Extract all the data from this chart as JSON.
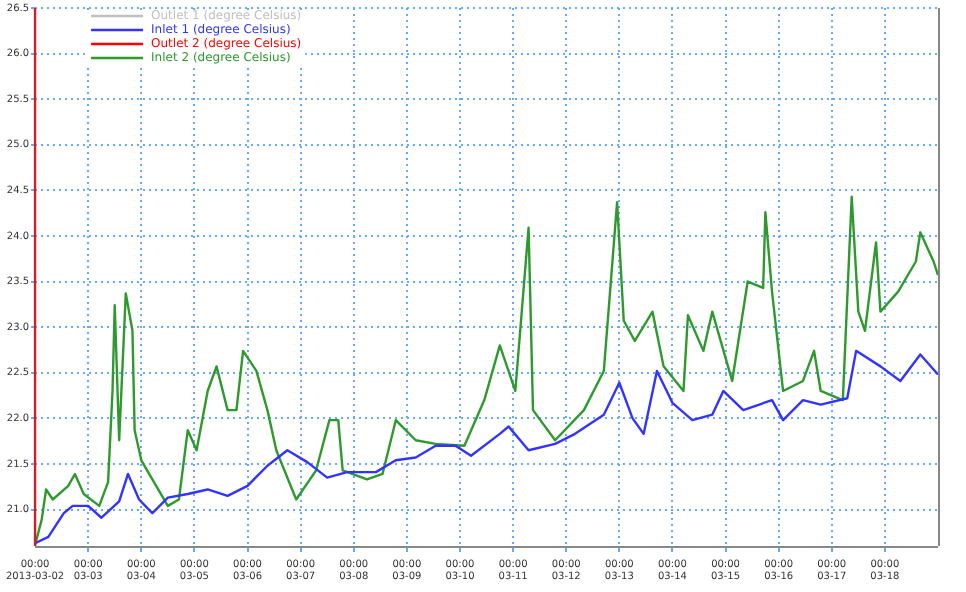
{
  "chart_data": {
    "type": "line",
    "legend": "top left",
    "grid": true,
    "marker": "none",
    "line_style": "solid",
    "xlim": [
      "2013-03-02",
      "2013-03-19"
    ],
    "xticks": [
      {
        "value": "2013-03-02",
        "label": "00:00\n2013-03-02"
      },
      {
        "value": "2013-03-03",
        "label": "00:00\n03-03"
      },
      {
        "value": "2013-03-04",
        "label": "00:00\n03-04"
      },
      {
        "value": "2013-03-05",
        "label": "00:00\n03-05"
      },
      {
        "value": "2013-03-06",
        "label": "00:00\n03-06"
      },
      {
        "value": "2013-03-07",
        "label": "00:00\n03-07"
      },
      {
        "value": "2013-03-08",
        "label": "00:00\n03-08"
      },
      {
        "value": "2013-03-09",
        "label": "00:00\n03-09"
      },
      {
        "value": "2013-03-10",
        "label": "00:00\n03-10"
      },
      {
        "value": "2013-03-11",
        "label": "00:00\n03-11"
      },
      {
        "value": "2013-03-12",
        "label": "00:00\n03-12"
      },
      {
        "value": "2013-03-13",
        "label": "00:00\n03-13"
      },
      {
        "value": "2013-03-14",
        "label": "00:00\n03-14"
      },
      {
        "value": "2013-03-15",
        "label": "00:00\n03-15"
      },
      {
        "value": "2013-03-16",
        "label": "00:00\n03-16"
      },
      {
        "value": "2013-03-17",
        "label": "00:00\n03-17"
      },
      {
        "value": "2013-03-18",
        "label": "00:00\n03-18"
      }
    ],
    "ylim": [
      20.6,
      26.5
    ],
    "yticks": [
      {
        "value": 21,
        "label": "21.0"
      },
      21.5,
      {
        "value": 22,
        "label": "22.0"
      },
      22.5,
      {
        "value": 23,
        "label": "23.0"
      },
      23.5,
      {
        "value": 24,
        "label": "24.0"
      },
      24.5,
      {
        "value": 25,
        "label": "25.0"
      },
      25.5,
      {
        "value": 26,
        "label": "26.0"
      },
      26.5
    ],
    "series": [
      {
        "name": "Outlet 1 (degree Celsius)",
        "color": "#c0c0c0"
      },
      {
        "name": "Inlet 1 (degree Celsius)",
        "color": "#3333ff",
        "x": [
          "2013-03-02T00:00",
          "2013-03-02T06:00",
          "2013-03-02T13:00",
          "2013-03-02T17:00",
          "2013-03-03T00:00",
          "2013-03-03T06:00",
          "2013-03-03T14:00",
          "2013-03-03T18:00",
          "2013-03-03T23:00",
          "2013-03-04T05:00",
          "2013-03-04T12:00",
          "2013-03-04T21:00",
          "2013-03-05T06:00",
          "2013-03-05T15:00",
          "2013-03-06T00:00",
          "2013-03-06T09:00",
          "2013-03-06T18:00",
          "2013-03-07T03:00",
          "2013-03-07T12:00",
          "2013-03-07T21:00",
          "2013-03-08T10:00",
          "2013-03-08T19:00",
          "2013-03-09T04:00",
          "2013-03-09T13:00",
          "2013-03-09T22:00",
          "2013-03-10T05:00",
          "2013-03-10T18:00",
          "2013-03-10T22:00",
          "2013-03-11T07:00",
          "2013-03-11T19:00",
          "2013-03-12T04:00",
          "2013-03-12T17:00",
          "2013-03-13T00:00",
          "2013-03-13T06:00",
          "2013-03-13T11:00",
          "2013-03-13T17:00",
          "2013-03-14T00:00",
          "2013-03-14T09:00",
          "2013-03-14T18:00",
          "2013-03-14T23:00",
          "2013-03-15T08:00",
          "2013-03-15T21:00",
          "2013-03-16T02:00",
          "2013-03-16T11:00",
          "2013-03-16T19:00",
          "2013-03-17T07:00",
          "2013-03-17T11:00",
          "2013-03-17T22:00",
          "2013-03-18T07:00",
          "2013-03-18T16:00",
          "2013-03-19T00:00"
        ],
        "values": [
          20.63,
          20.7,
          20.96,
          21.04,
          21.04,
          20.91,
          21.09,
          21.39,
          21.11,
          20.96,
          21.13,
          21.17,
          21.22,
          21.15,
          21.26,
          21.48,
          21.65,
          21.52,
          21.35,
          21.41,
          21.41,
          21.54,
          21.57,
          21.7,
          21.7,
          21.59,
          21.83,
          21.91,
          21.65,
          21.72,
          21.83,
          22.04,
          22.39,
          22.0,
          21.83,
          22.52,
          22.17,
          21.98,
          22.04,
          22.3,
          22.09,
          22.2,
          21.98,
          22.2,
          22.15,
          22.22,
          22.74,
          22.57,
          22.41,
          22.7,
          22.48
        ]
      },
      {
        "name": "Outlet 2 (degree Celsius)",
        "color": "#ff0000"
      },
      {
        "name": "Inlet 2 (degree Celsius)",
        "color": "#2e9a2e",
        "x": [
          "2013-03-02T00:00",
          "2013-03-02T03:00",
          "2013-03-02T05:00",
          "2013-03-02T08:00",
          "2013-03-02T15:00",
          "2013-03-02T18:00",
          "2013-03-02T22:00",
          "2013-03-03T05:00",
          "2013-03-03T09:00",
          "2013-03-03T11:00",
          "2013-03-03T12:00",
          "2013-03-03T14:00",
          "2013-03-03T17:00",
          "2013-03-03T20:00",
          "2013-03-03T21:00",
          "2013-03-04T00:00",
          "2013-03-04T05:00",
          "2013-03-04T12:00",
          "2013-03-04T17:00",
          "2013-03-04T21:00",
          "2013-03-05T01:00",
          "2013-03-05T06:00",
          "2013-03-05T10:00",
          "2013-03-05T15:00",
          "2013-03-05T19:00",
          "2013-03-05T22:00",
          "2013-03-06T04:00",
          "2013-03-06T09:00",
          "2013-03-06T13:00",
          "2013-03-06T22:00",
          "2013-03-07T07:00",
          "2013-03-07T13:00",
          "2013-03-07T17:00",
          "2013-03-07T19:00",
          "2013-03-08T06:00",
          "2013-03-08T13:00",
          "2013-03-08T19:00",
          "2013-03-09T04:00",
          "2013-03-09T13:00",
          "2013-03-10T02:00",
          "2013-03-10T11:00",
          "2013-03-10T18:00",
          "2013-03-11T01:00",
          "2013-03-11T07:00",
          "2013-03-11T09:00",
          "2013-03-11T19:00",
          "2013-03-12T08:00",
          "2013-03-12T17:00",
          "2013-03-12T23:00",
          "2013-03-13T02:00",
          "2013-03-13T07:00",
          "2013-03-13T15:00",
          "2013-03-13T20:00",
          "2013-03-14T05:00",
          "2013-03-14T07:00",
          "2013-03-14T14:00",
          "2013-03-14T18:00",
          "2013-03-15T03:00",
          "2013-03-15T10:00",
          "2013-03-15T17:00",
          "2013-03-15T18:00",
          "2013-03-15T21:00",
          "2013-03-16T02:00",
          "2013-03-16T11:00",
          "2013-03-16T16:00",
          "2013-03-16T19:00",
          "2013-03-17T05:00",
          "2013-03-17T09:00",
          "2013-03-17T12:00",
          "2013-03-17T15:00",
          "2013-03-17T20:00",
          "2013-03-17T22:00",
          "2013-03-18T06:00",
          "2013-03-18T14:00",
          "2013-03-18T16:00",
          "2013-03-18T22:00",
          "2013-03-19T00:00"
        ],
        "values": [
          20.61,
          20.89,
          21.22,
          21.11,
          21.26,
          21.39,
          21.17,
          21.04,
          21.3,
          22.3,
          23.24,
          21.76,
          23.37,
          22.96,
          21.87,
          21.54,
          21.33,
          21.04,
          21.11,
          21.87,
          21.65,
          22.3,
          22.57,
          22.09,
          22.09,
          22.74,
          22.52,
          22.09,
          21.65,
          21.11,
          21.43,
          21.98,
          21.98,
          21.43,
          21.33,
          21.39,
          21.98,
          21.76,
          21.72,
          21.7,
          22.2,
          22.8,
          22.3,
          24.09,
          22.09,
          21.76,
          22.09,
          22.52,
          24.37,
          23.07,
          22.85,
          23.17,
          22.57,
          22.3,
          23.13,
          22.74,
          23.17,
          22.41,
          23.5,
          23.43,
          24.26,
          23.39,
          22.3,
          22.41,
          22.74,
          22.3,
          22.2,
          24.43,
          23.17,
          22.96,
          23.93,
          23.17,
          23.39,
          23.72,
          24.04,
          23.72,
          23.57
        ]
      }
    ]
  }
}
